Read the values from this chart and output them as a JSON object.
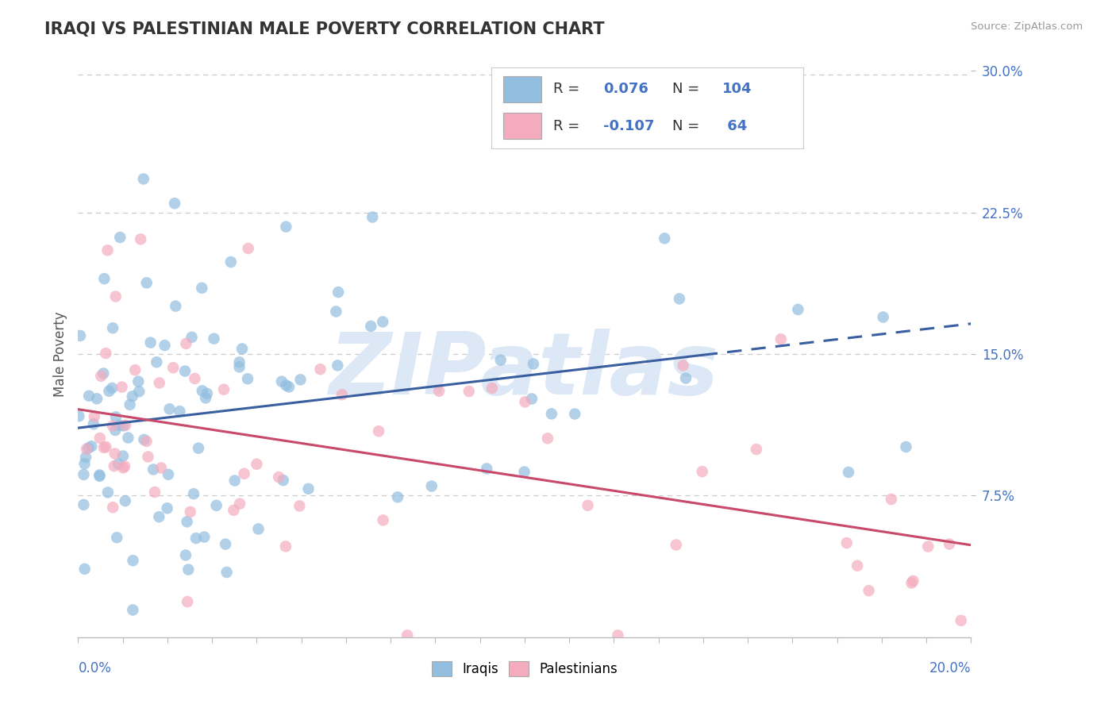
{
  "title": "IRAQI VS PALESTINIAN MALE POVERTY CORRELATION CHART",
  "source_text": "Source: ZipAtlas.com",
  "ylabel": "Male Poverty",
  "x_min": 0.0,
  "x_max": 0.2,
  "y_min": 0.0,
  "y_max": 0.3,
  "iraqi_R": 0.076,
  "iraqi_N": 104,
  "palestinian_R": -0.107,
  "palestinian_N": 64,
  "iraqi_color": "#92BEE0",
  "palestinian_color": "#F5ABBE",
  "iraqi_line_color": "#3A5FA0",
  "palestinian_line_color": "#C8496A",
  "axis_label_color": "#4472C4",
  "background_color": "#FFFFFF",
  "grid_color": "#CCCCCC",
  "title_color": "#333333",
  "title_fontsize": 15,
  "legend_label_iraqi": "Iraqis",
  "legend_label_palestinian": "Palestinians",
  "watermark_text": "ZIPatlas",
  "watermark_color": "#DCE8F5"
}
